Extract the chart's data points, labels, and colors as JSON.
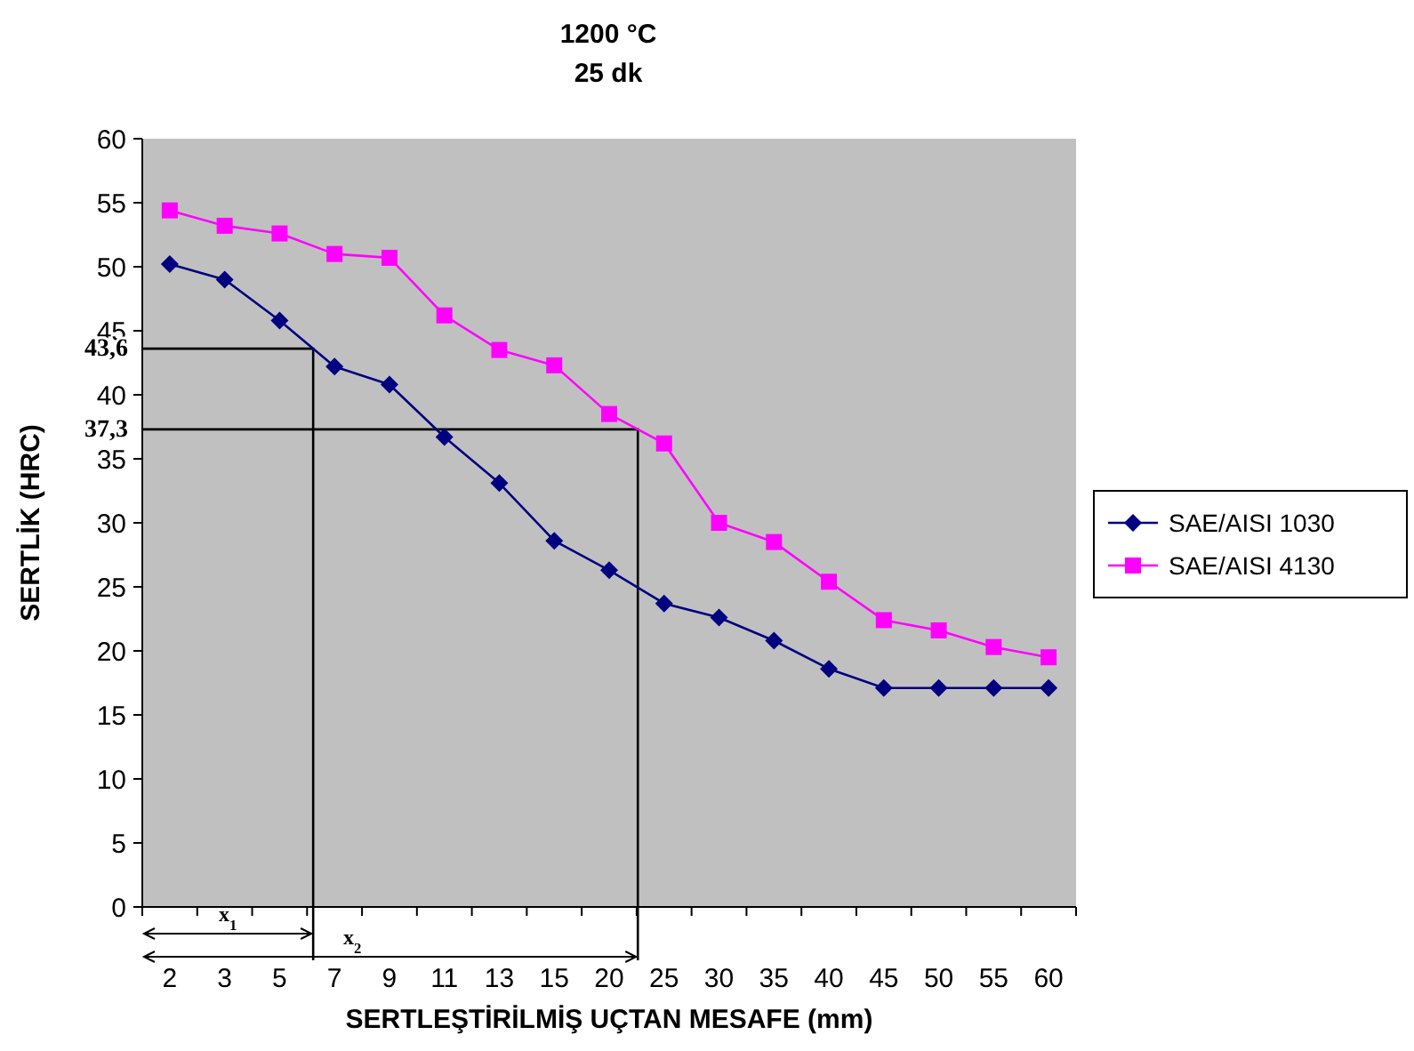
{
  "chart_data": {
    "type": "line",
    "title": "1200 °C",
    "subtitle": "25 dk",
    "xlabel": "SERTLEŞTİRİLMİŞ UÇTAN MESAFE (mm)",
    "ylabel": "SERTLİK (HRC)",
    "categories": [
      "2",
      "3",
      "5",
      "7",
      "9",
      "11",
      "13",
      "15",
      "20",
      "25",
      "30",
      "35",
      "40",
      "45",
      "50",
      "55",
      "60"
    ],
    "series": [
      {
        "name": "SAE/AISI 1030",
        "color": "#000080",
        "marker": "diamond",
        "values": [
          50.2,
          49,
          45.8,
          42.2,
          40.8,
          36.7,
          33.1,
          28.6,
          26.3,
          23.7,
          22.6,
          20.8,
          18.6,
          17.1,
          17.1,
          17.1,
          17.1
        ]
      },
      {
        "name": "SAE/AISI 4130",
        "color": "#ff00ff",
        "marker": "square",
        "values": [
          54.4,
          53.2,
          52.6,
          51,
          50.7,
          46.2,
          43.5,
          42.3,
          38.5,
          36.2,
          30,
          28.5,
          25.4,
          22.4,
          21.6,
          20.3,
          19.5
        ]
      }
    ],
    "ylim": [
      0,
      60
    ],
    "yticks": [
      0,
      5,
      10,
      15,
      20,
      25,
      30,
      35,
      40,
      45,
      50,
      55,
      60
    ],
    "ref_lines": [
      {
        "axis": "y",
        "value": 43.6,
        "label": "43,6",
        "color": "#000000"
      },
      {
        "axis": "y",
        "value": 37.3,
        "label": "37,3",
        "color": "#000000"
      }
    ],
    "annotations": [
      "x$_{1}$",
      "x$_{2}$"
    ],
    "grid": false,
    "legend": "right"
  }
}
